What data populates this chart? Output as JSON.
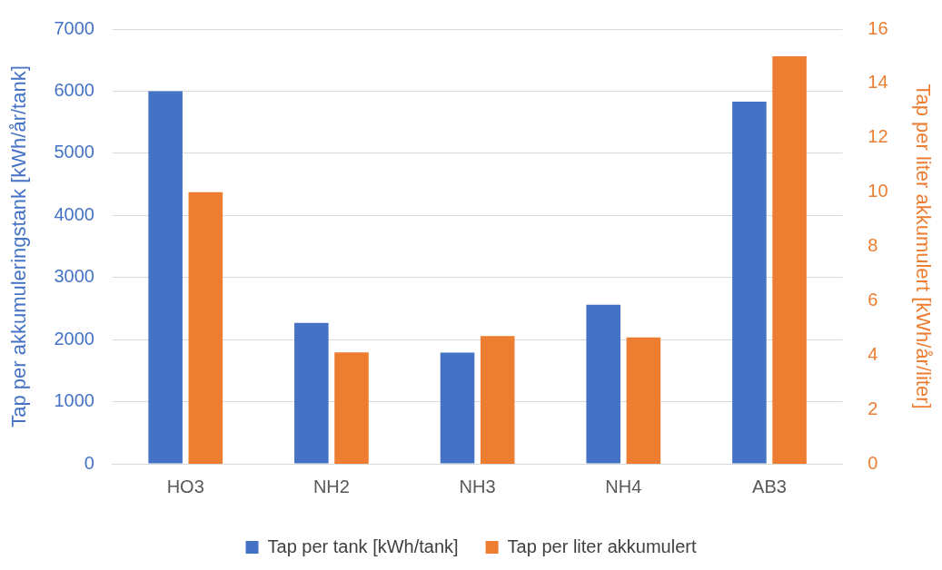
{
  "chart_data": {
    "type": "bar",
    "categories": [
      "HO3",
      "NH2",
      "NH3",
      "NH4",
      "AB3"
    ],
    "ylabel": "Tap per akkumuleringstank [kWh/år/tank]",
    "y2label": "Tap per liter akkumulert [kWh/år/liter]",
    "ylim": [
      0,
      7000
    ],
    "yticks": [
      0,
      1000,
      2000,
      3000,
      4000,
      5000,
      6000,
      7000
    ],
    "y2lim": [
      0,
      16
    ],
    "y2ticks": [
      0,
      2,
      4,
      6,
      8,
      10,
      12,
      14,
      16
    ],
    "grid": "y",
    "legend": "bottom",
    "series": [
      {
        "name": "Tap per tank [kWh/tank]",
        "color": "#4472c4",
        "values": [
          6000,
          2270,
          1790,
          2560,
          5830
        ]
      },
      {
        "name": "Tap per liter akkumulert",
        "color": "#ed7d31",
        "axis": "y2",
        "values": [
          10.0,
          4.1,
          4.7,
          4.65,
          15.0
        ]
      }
    ]
  }
}
